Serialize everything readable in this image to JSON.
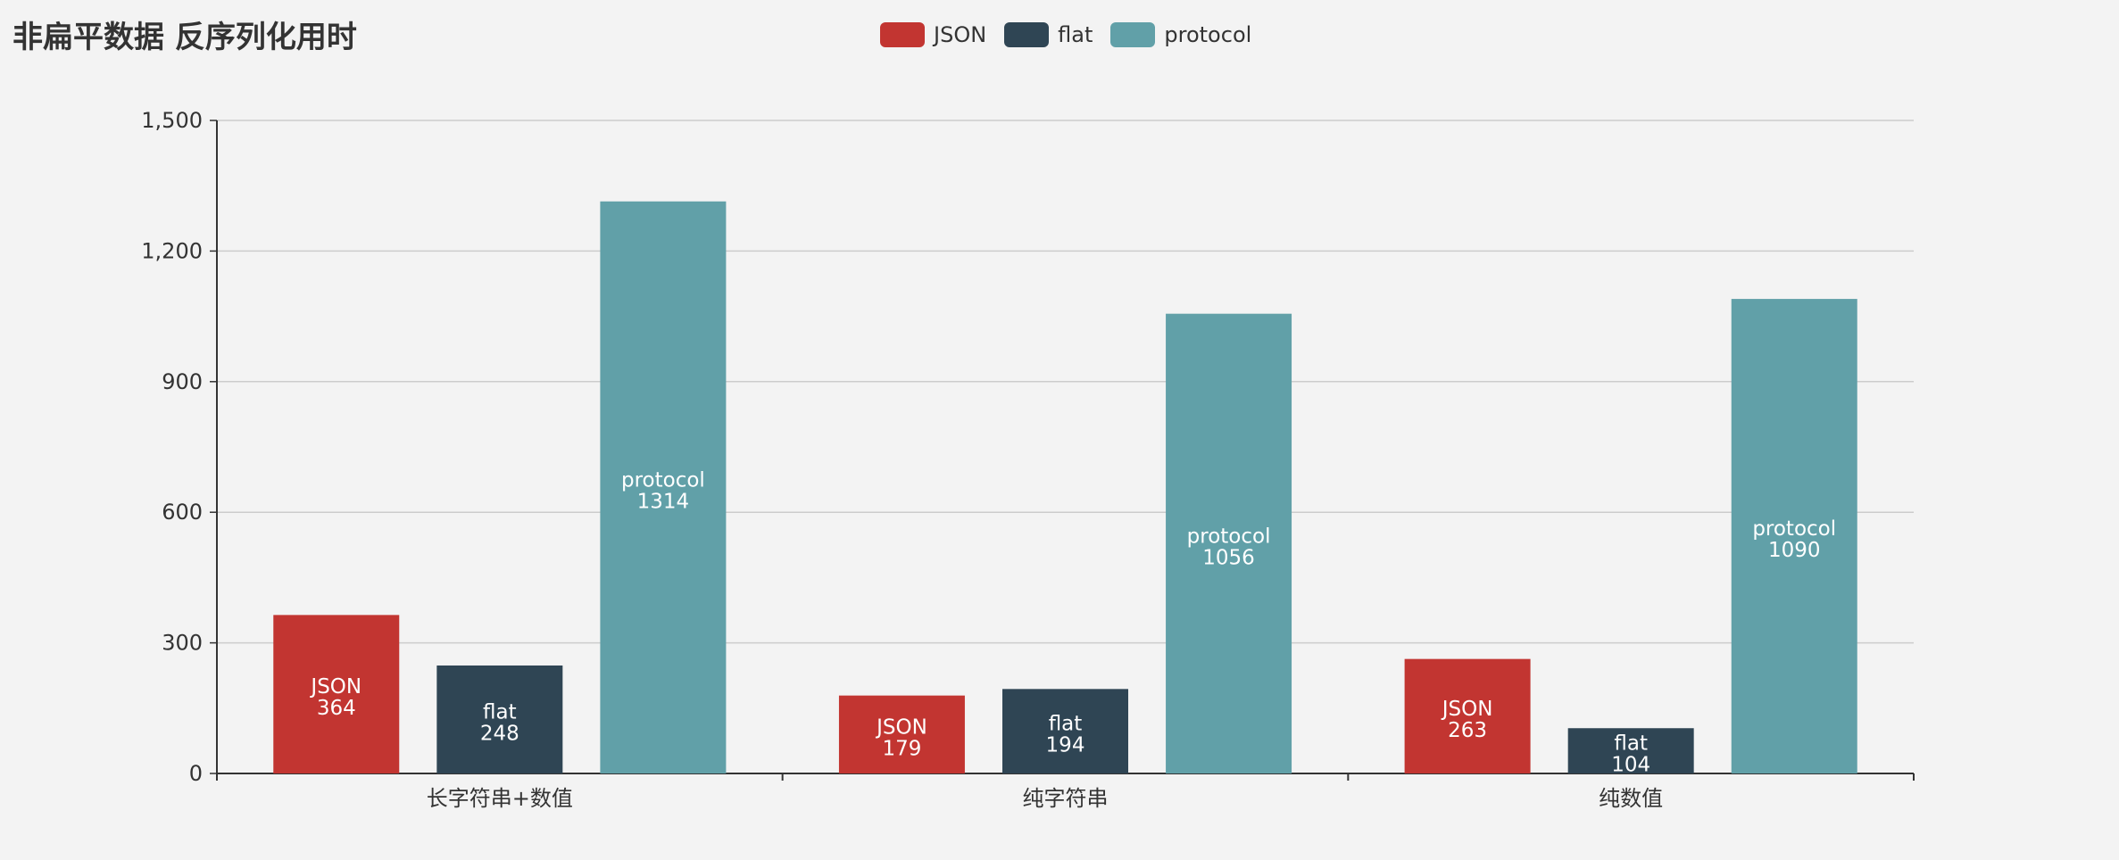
{
  "title": "非扁平数据 反序列化用时",
  "chart_data": {
    "type": "bar",
    "title": "非扁平数据 反序列化用时",
    "categories": [
      "长字符串+数值",
      "纯字符串",
      "纯数值"
    ],
    "series": [
      {
        "name": "JSON",
        "color": "#c23531",
        "values": [
          364,
          179,
          263
        ]
      },
      {
        "name": "flat",
        "color": "#2f4554",
        "values": [
          248,
          194,
          104
        ]
      },
      {
        "name": "protocol",
        "color": "#61a0a8",
        "values": [
          1314,
          1056,
          1090
        ]
      }
    ],
    "ylim": [
      0,
      1500
    ],
    "yticks": [
      0,
      300,
      600,
      900,
      1200,
      1500
    ],
    "ytick_labels": [
      "0",
      "300",
      "600",
      "900",
      "1,200",
      "1,500"
    ],
    "grid": true,
    "legend_position": "top-center",
    "data_labels": "inside bar, series name and value"
  }
}
